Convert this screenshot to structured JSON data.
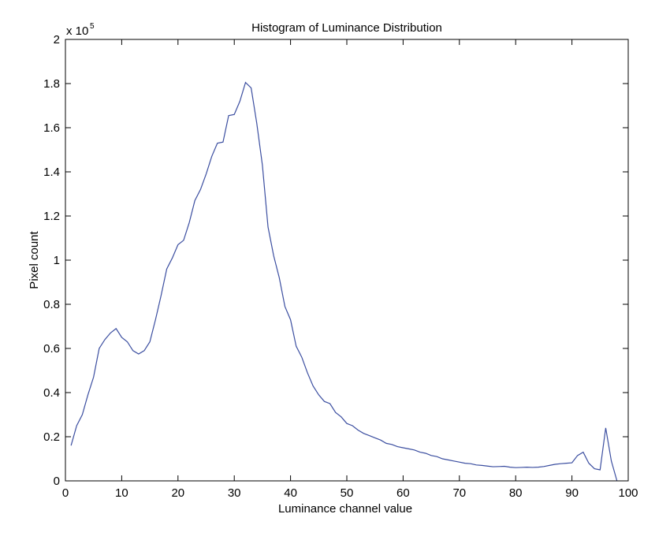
{
  "chart_data": {
    "type": "line",
    "title": "Histogram of Luminance Distribution",
    "xlabel": "Luminance channel value",
    "ylabel": "Pixel count",
    "y_multiplier_base": "x 10",
    "y_multiplier_exponent": "5",
    "xlim": [
      0,
      100
    ],
    "ylim": [
      0,
      2
    ],
    "grid": false,
    "x_ticks": [
      0,
      10,
      20,
      30,
      40,
      50,
      60,
      70,
      80,
      90,
      100
    ],
    "x_tick_labels": [
      "0",
      "10",
      "20",
      "30",
      "40",
      "50",
      "60",
      "70",
      "80",
      "90",
      "100"
    ],
    "y_ticks": [
      0,
      0.2,
      0.4,
      0.6,
      0.8,
      1.0,
      1.2,
      1.4,
      1.6,
      1.8,
      2.0
    ],
    "y_tick_labels": [
      "0",
      "0.2",
      "0.4",
      "0.6",
      "0.8",
      "1",
      "1.2",
      "1.4",
      "1.6",
      "1.8",
      "2"
    ],
    "series": [
      {
        "color": "#3b4ea0",
        "x": [
          1,
          2,
          3,
          4,
          5,
          6,
          7,
          8,
          9,
          10,
          11,
          12,
          13,
          14,
          15,
          16,
          17,
          18,
          19,
          20,
          21,
          22,
          23,
          24,
          25,
          26,
          27,
          28,
          29,
          30,
          31,
          32,
          33,
          34,
          35,
          36,
          37,
          38,
          39,
          40,
          41,
          42,
          43,
          44,
          45,
          46,
          47,
          48,
          49,
          50,
          51,
          52,
          53,
          54,
          55,
          56,
          57,
          58,
          59,
          60,
          61,
          62,
          63,
          64,
          65,
          66,
          67,
          68,
          69,
          70,
          71,
          72,
          73,
          74,
          75,
          76,
          77,
          78,
          79,
          80,
          81,
          82,
          83,
          84,
          85,
          86,
          87,
          88,
          89,
          90,
          91,
          92,
          93,
          94,
          95,
          96,
          97,
          98
        ],
        "y": [
          0.16,
          0.25,
          0.3,
          0.39,
          0.47,
          0.6,
          0.64,
          0.67,
          0.69,
          0.65,
          0.63,
          0.59,
          0.575,
          0.59,
          0.63,
          0.73,
          0.84,
          0.96,
          1.01,
          1.07,
          1.09,
          1.17,
          1.27,
          1.32,
          1.39,
          1.47,
          1.53,
          1.535,
          1.655,
          1.66,
          1.72,
          1.805,
          1.78,
          1.62,
          1.43,
          1.15,
          1.02,
          0.92,
          0.79,
          0.73,
          0.61,
          0.56,
          0.49,
          0.43,
          0.39,
          0.36,
          0.35,
          0.31,
          0.29,
          0.26,
          0.25,
          0.23,
          0.215,
          0.205,
          0.195,
          0.185,
          0.17,
          0.165,
          0.155,
          0.15,
          0.145,
          0.14,
          0.13,
          0.125,
          0.115,
          0.11,
          0.1,
          0.095,
          0.09,
          0.085,
          0.08,
          0.078,
          0.072,
          0.07,
          0.067,
          0.064,
          0.065,
          0.066,
          0.062,
          0.06,
          0.061,
          0.062,
          0.061,
          0.062,
          0.065,
          0.07,
          0.075,
          0.078,
          0.08,
          0.082,
          0.115,
          0.13,
          0.08,
          0.055,
          0.05,
          0.24,
          0.09,
          0.0
        ]
      }
    ]
  }
}
